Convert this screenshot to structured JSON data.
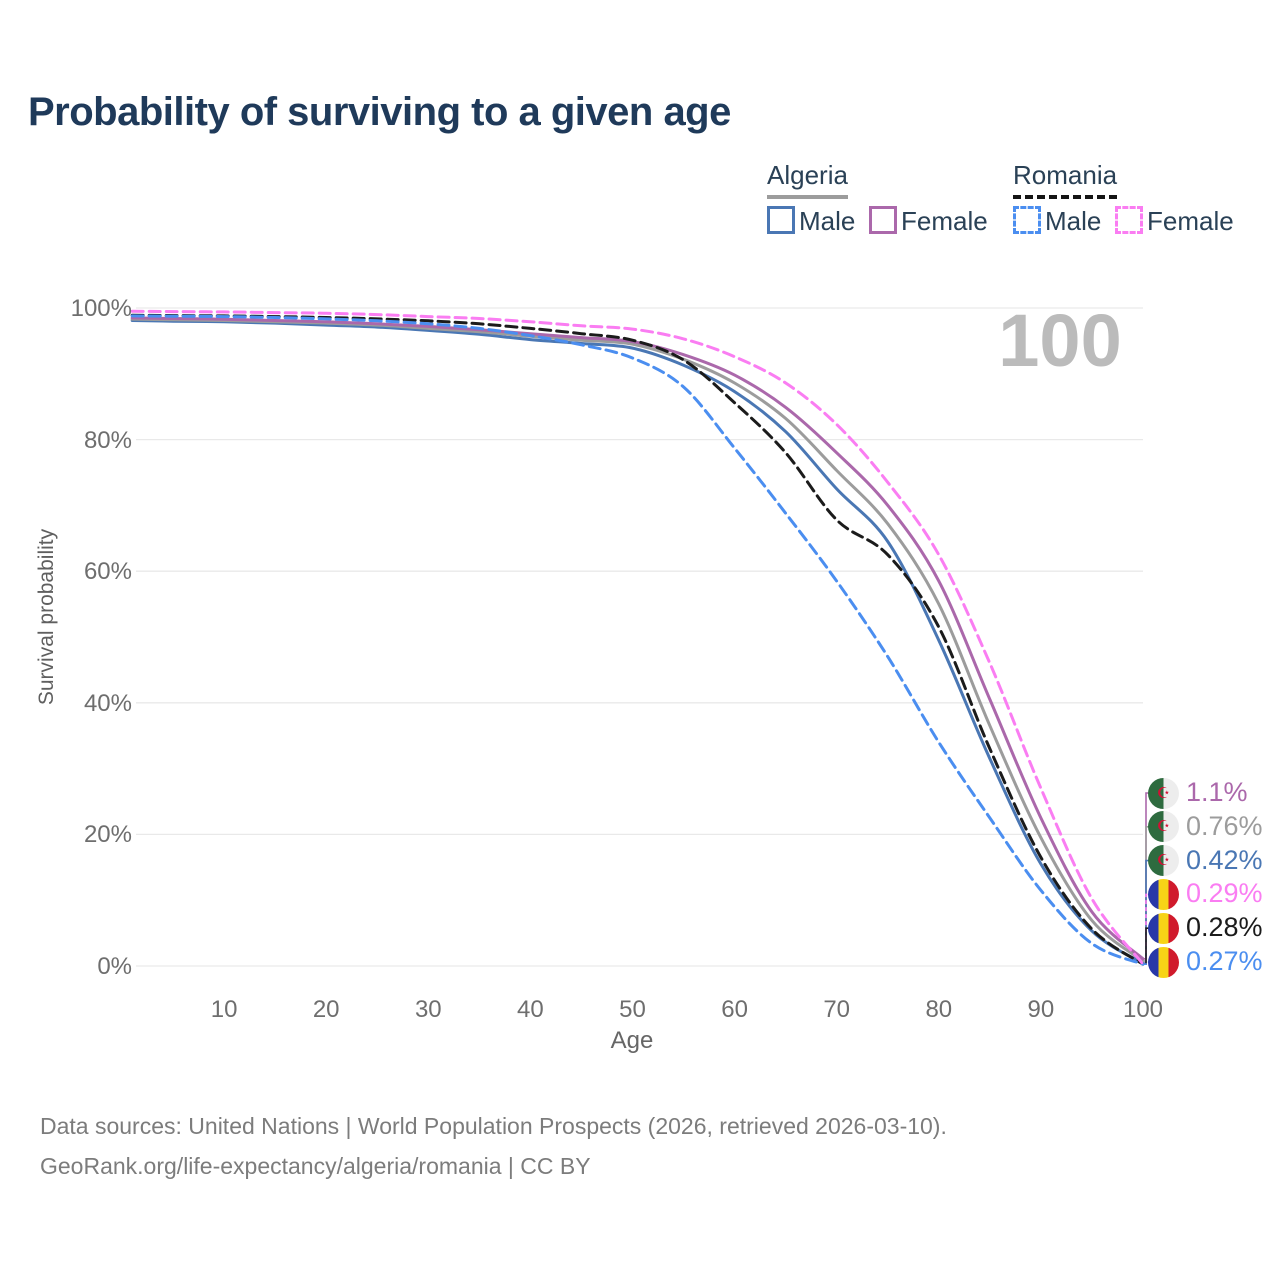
{
  "title": "Probability of surviving to a given age",
  "watermark": "100",
  "legend": {
    "groups": [
      {
        "label": "Algeria",
        "line_style": "solid",
        "underline_color": "#9c9c9c",
        "items": [
          {
            "label": "Male",
            "color": "#4a77b4",
            "dashed": false
          },
          {
            "label": "Female",
            "color": "#ab68ab",
            "dashed": false
          }
        ]
      },
      {
        "label": "Romania",
        "line_style": "dashed",
        "underline_color": "#141414",
        "items": [
          {
            "label": "Male",
            "color": "#4b8ef0",
            "dashed": true
          },
          {
            "label": "Female",
            "color": "#fa7df2",
            "dashed": true
          }
        ]
      }
    ]
  },
  "chart_data": {
    "type": "line",
    "title": "Probability of surviving to a given age",
    "xlabel": "Age",
    "ylabel": "Survival probability",
    "xlim": [
      0,
      100
    ],
    "ylim": [
      0,
      100
    ],
    "grid": "horizontal-only",
    "x_ticks": [
      10,
      20,
      30,
      40,
      50,
      60,
      70,
      80,
      90,
      100
    ],
    "y_ticks": [
      "0%",
      "20%",
      "40%",
      "60%",
      "80%",
      "100%"
    ],
    "x": [
      1,
      5,
      10,
      15,
      20,
      25,
      30,
      35,
      40,
      45,
      50,
      55,
      60,
      65,
      70,
      75,
      80,
      85,
      90,
      95,
      100
    ],
    "series": [
      {
        "name": "Algeria Male",
        "key": "algeria_male",
        "color": "#4a77b4",
        "dashed": false,
        "end_label": "0.42%",
        "values": [
          98.1,
          98.0,
          97.9,
          97.7,
          97.4,
          97.1,
          96.6,
          96.0,
          95.2,
          94.6,
          93.9,
          91.3,
          87.3,
          81.2,
          72.5,
          64.5,
          49.5,
          31.5,
          15.5,
          5.3,
          0.42
        ]
      },
      {
        "name": "Algeria Total",
        "key": "algeria_total",
        "color": "#9c9c9c",
        "dashed": false,
        "end_label": "0.76%",
        "values": [
          98.3,
          98.2,
          98.1,
          97.9,
          97.7,
          97.4,
          96.9,
          96.4,
          95.7,
          95.1,
          94.5,
          92.2,
          88.6,
          83.2,
          75.3,
          67.2,
          55.0,
          36.5,
          19.5,
          6.9,
          0.76
        ]
      },
      {
        "name": "Algeria Female",
        "key": "algeria_female",
        "color": "#ab68ab",
        "dashed": false,
        "end_label": "1.1%",
        "values": [
          98.5,
          98.4,
          98.3,
          98.1,
          97.9,
          97.6,
          97.2,
          96.7,
          96.1,
          95.5,
          94.9,
          92.9,
          89.8,
          84.9,
          78.0,
          70.0,
          58.5,
          40.5,
          22.5,
          8.2,
          1.1
        ]
      },
      {
        "name": "Romania Total",
        "key": "romania_total",
        "color": "#1b1b1b",
        "dashed": true,
        "end_label": "0.28%",
        "values": [
          98.9,
          98.85,
          98.8,
          98.7,
          98.55,
          98.35,
          98.05,
          97.6,
          96.9,
          96.1,
          95.1,
          92.1,
          85.6,
          78.0,
          67.8,
          62.5,
          51.5,
          33.0,
          16.5,
          5.6,
          0.28
        ]
      },
      {
        "name": "Romania Male",
        "key": "romania_male",
        "color": "#4b8ef0",
        "dashed": true,
        "end_label": "0.27%",
        "values": [
          98.8,
          98.75,
          98.7,
          98.55,
          98.35,
          98.05,
          97.6,
          96.9,
          95.8,
          94.4,
          92.4,
          88.0,
          78.7,
          68.8,
          58.5,
          47.0,
          34.0,
          22.5,
          11.5,
          3.4,
          0.27
        ]
      },
      {
        "name": "Romania Female",
        "key": "romania_female",
        "color": "#fa7df2",
        "dashed": true,
        "end_label": "0.29%",
        "values": [
          99.5,
          99.45,
          99.4,
          99.3,
          99.2,
          99.0,
          98.7,
          98.4,
          97.9,
          97.3,
          96.8,
          95.3,
          92.6,
          88.6,
          82.3,
          73.5,
          62.5,
          46.0,
          27.0,
          10.2,
          0.29
        ]
      }
    ],
    "end_labels": [
      {
        "text": "1.1%",
        "flag": "algeria",
        "series": "algeria_female",
        "color": "#ab68ab"
      },
      {
        "text": "0.76%",
        "flag": "algeria",
        "series": "algeria_total",
        "color": "#9c9c9c"
      },
      {
        "text": "0.42%",
        "flag": "algeria",
        "series": "algeria_male",
        "color": "#4a77b4"
      },
      {
        "text": "0.29%",
        "flag": "romania",
        "series": "romania_female",
        "color": "#fa7df2"
      },
      {
        "text": "0.28%",
        "flag": "romania",
        "series": "romania_total",
        "color": "#1b1b1b"
      },
      {
        "text": "0.27%",
        "flag": "romania",
        "series": "romania_male",
        "color": "#4b8ef0"
      }
    ],
    "legend_position": "top-right"
  },
  "footer": {
    "line1": "Data sources: United Nations | World Population Prospects (2026, retrieved 2026-03-10).",
    "line2": "GeoRank.org/life-expectancy/algeria/romania | CC BY"
  },
  "colors": {
    "title": "#1f3a5a",
    "axis_text": "#6e6e6e",
    "gridline": "#e9e9e9",
    "watermark": "#bbbbbb",
    "footer_text": "#7c7c7c"
  }
}
